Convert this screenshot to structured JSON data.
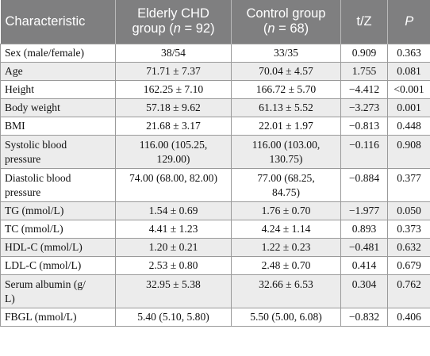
{
  "header": {
    "characteristic": "Characteristic",
    "elderly_line1": "Elderly CHD",
    "elderly_line2_pre": "group (",
    "elderly_n": "n",
    "elderly_line2_post": " = 92)",
    "control_line1": "Control group",
    "control_pre": "(",
    "control_n": "n",
    "control_post": " = 68)",
    "tz": "t/Z",
    "p": "P"
  },
  "rows": [
    {
      "label": "Sex (male/female)",
      "elderly": "38/54",
      "control": "33/35",
      "tz": "0.909",
      "p": "0.363"
    },
    {
      "label": "Age",
      "elderly": "71.71 ± 7.37",
      "control": "70.04 ± 4.57",
      "tz": "1.755",
      "p": "0.081"
    },
    {
      "label": "Height",
      "elderly": "162.25 ± 7.10",
      "control": "166.72 ± 5.70",
      "tz": "−4.412",
      "p": "<0.001"
    },
    {
      "label": "Body weight",
      "elderly": "57.18 ± 9.62",
      "control": "61.13 ± 5.52",
      "tz": "−3.273",
      "p": "0.001"
    },
    {
      "label": "BMI",
      "elderly": "21.68 ± 3.17",
      "control": "22.01 ± 1.97",
      "tz": "−0.813",
      "p": "0.448"
    },
    {
      "label_1": "Systolic blood",
      "label_2": "pressure",
      "elderly_1": "116.00 (105.25,",
      "elderly_2": "129.00)",
      "control_1": "116.00 (103.00,",
      "control_2": "130.75)",
      "tz": "−0.116",
      "p": "0.908"
    },
    {
      "label_1": "Diastolic blood",
      "label_2": "pressure",
      "elderly": "74.00 (68.00, 82.00)",
      "control_1": "77.00 (68.25,",
      "control_2": "84.75)",
      "tz": "−0.884",
      "p": "0.377"
    },
    {
      "label": "TG (mmol/L)",
      "elderly": "1.54 ± 0.69",
      "control": "1.76 ± 0.70",
      "tz": "−1.977",
      "p": "0.050"
    },
    {
      "label": "TC (mmol/L)",
      "elderly": "4.41 ± 1.23",
      "control": "4.24 ± 1.14",
      "tz": "0.893",
      "p": "0.373"
    },
    {
      "label": "HDL-C (mmol/L)",
      "elderly": "1.20 ± 0.21",
      "control": "1.22 ± 0.23",
      "tz": "−0.481",
      "p": "0.632"
    },
    {
      "label": "LDL-C (mmol/L)",
      "elderly": "2.53 ± 0.80",
      "control": "2.48 ± 0.70",
      "tz": "0.414",
      "p": "0.679"
    },
    {
      "label_1": "Serum albumin (g/",
      "label_2": "L)",
      "elderly": "32.95 ± 5.38",
      "control": "32.66 ± 6.53",
      "tz": "0.304",
      "p": "0.762"
    },
    {
      "label": "FBGL (mmol/L)",
      "elderly": "5.40 (5.10, 5.80)",
      "control": "5.50 (5.00, 6.08)",
      "tz": "−0.832",
      "p": "0.406"
    }
  ]
}
